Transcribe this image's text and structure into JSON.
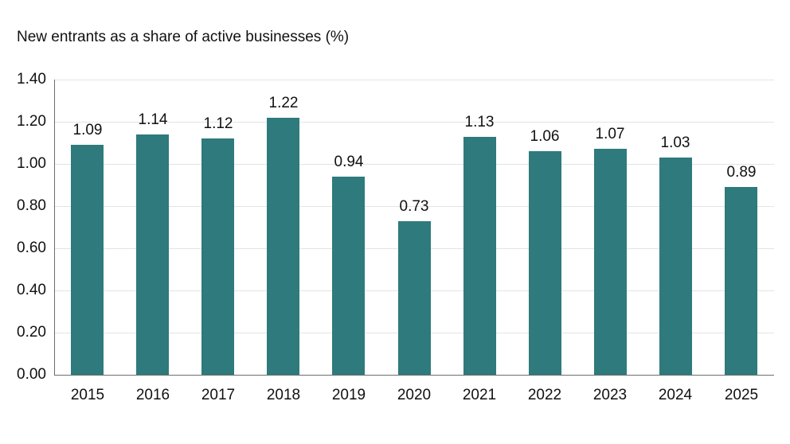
{
  "chart_data": {
    "type": "bar",
    "title": "New entrants as a share of active businesses (%)",
    "xlabel": "",
    "ylabel": "",
    "categories": [
      "2015",
      "2016",
      "2017",
      "2018",
      "2019",
      "2020",
      "2021",
      "2022",
      "2023",
      "2024",
      "2025"
    ],
    "values": [
      1.09,
      1.14,
      1.12,
      1.22,
      0.94,
      0.73,
      1.13,
      1.06,
      1.07,
      1.03,
      0.89
    ],
    "value_labels": [
      "1.09",
      "1.14",
      "1.12",
      "1.22",
      "0.94",
      "0.73",
      "1.13",
      "1.06",
      "1.07",
      "1.03",
      "0.89"
    ],
    "ylim": [
      0,
      1.4
    ],
    "yticks": [
      "0.00",
      "0.20",
      "0.40",
      "0.60",
      "0.80",
      "1.00",
      "1.20",
      "1.40"
    ],
    "grid": true,
    "legend": null,
    "bar_color": "#2e7a7c"
  }
}
